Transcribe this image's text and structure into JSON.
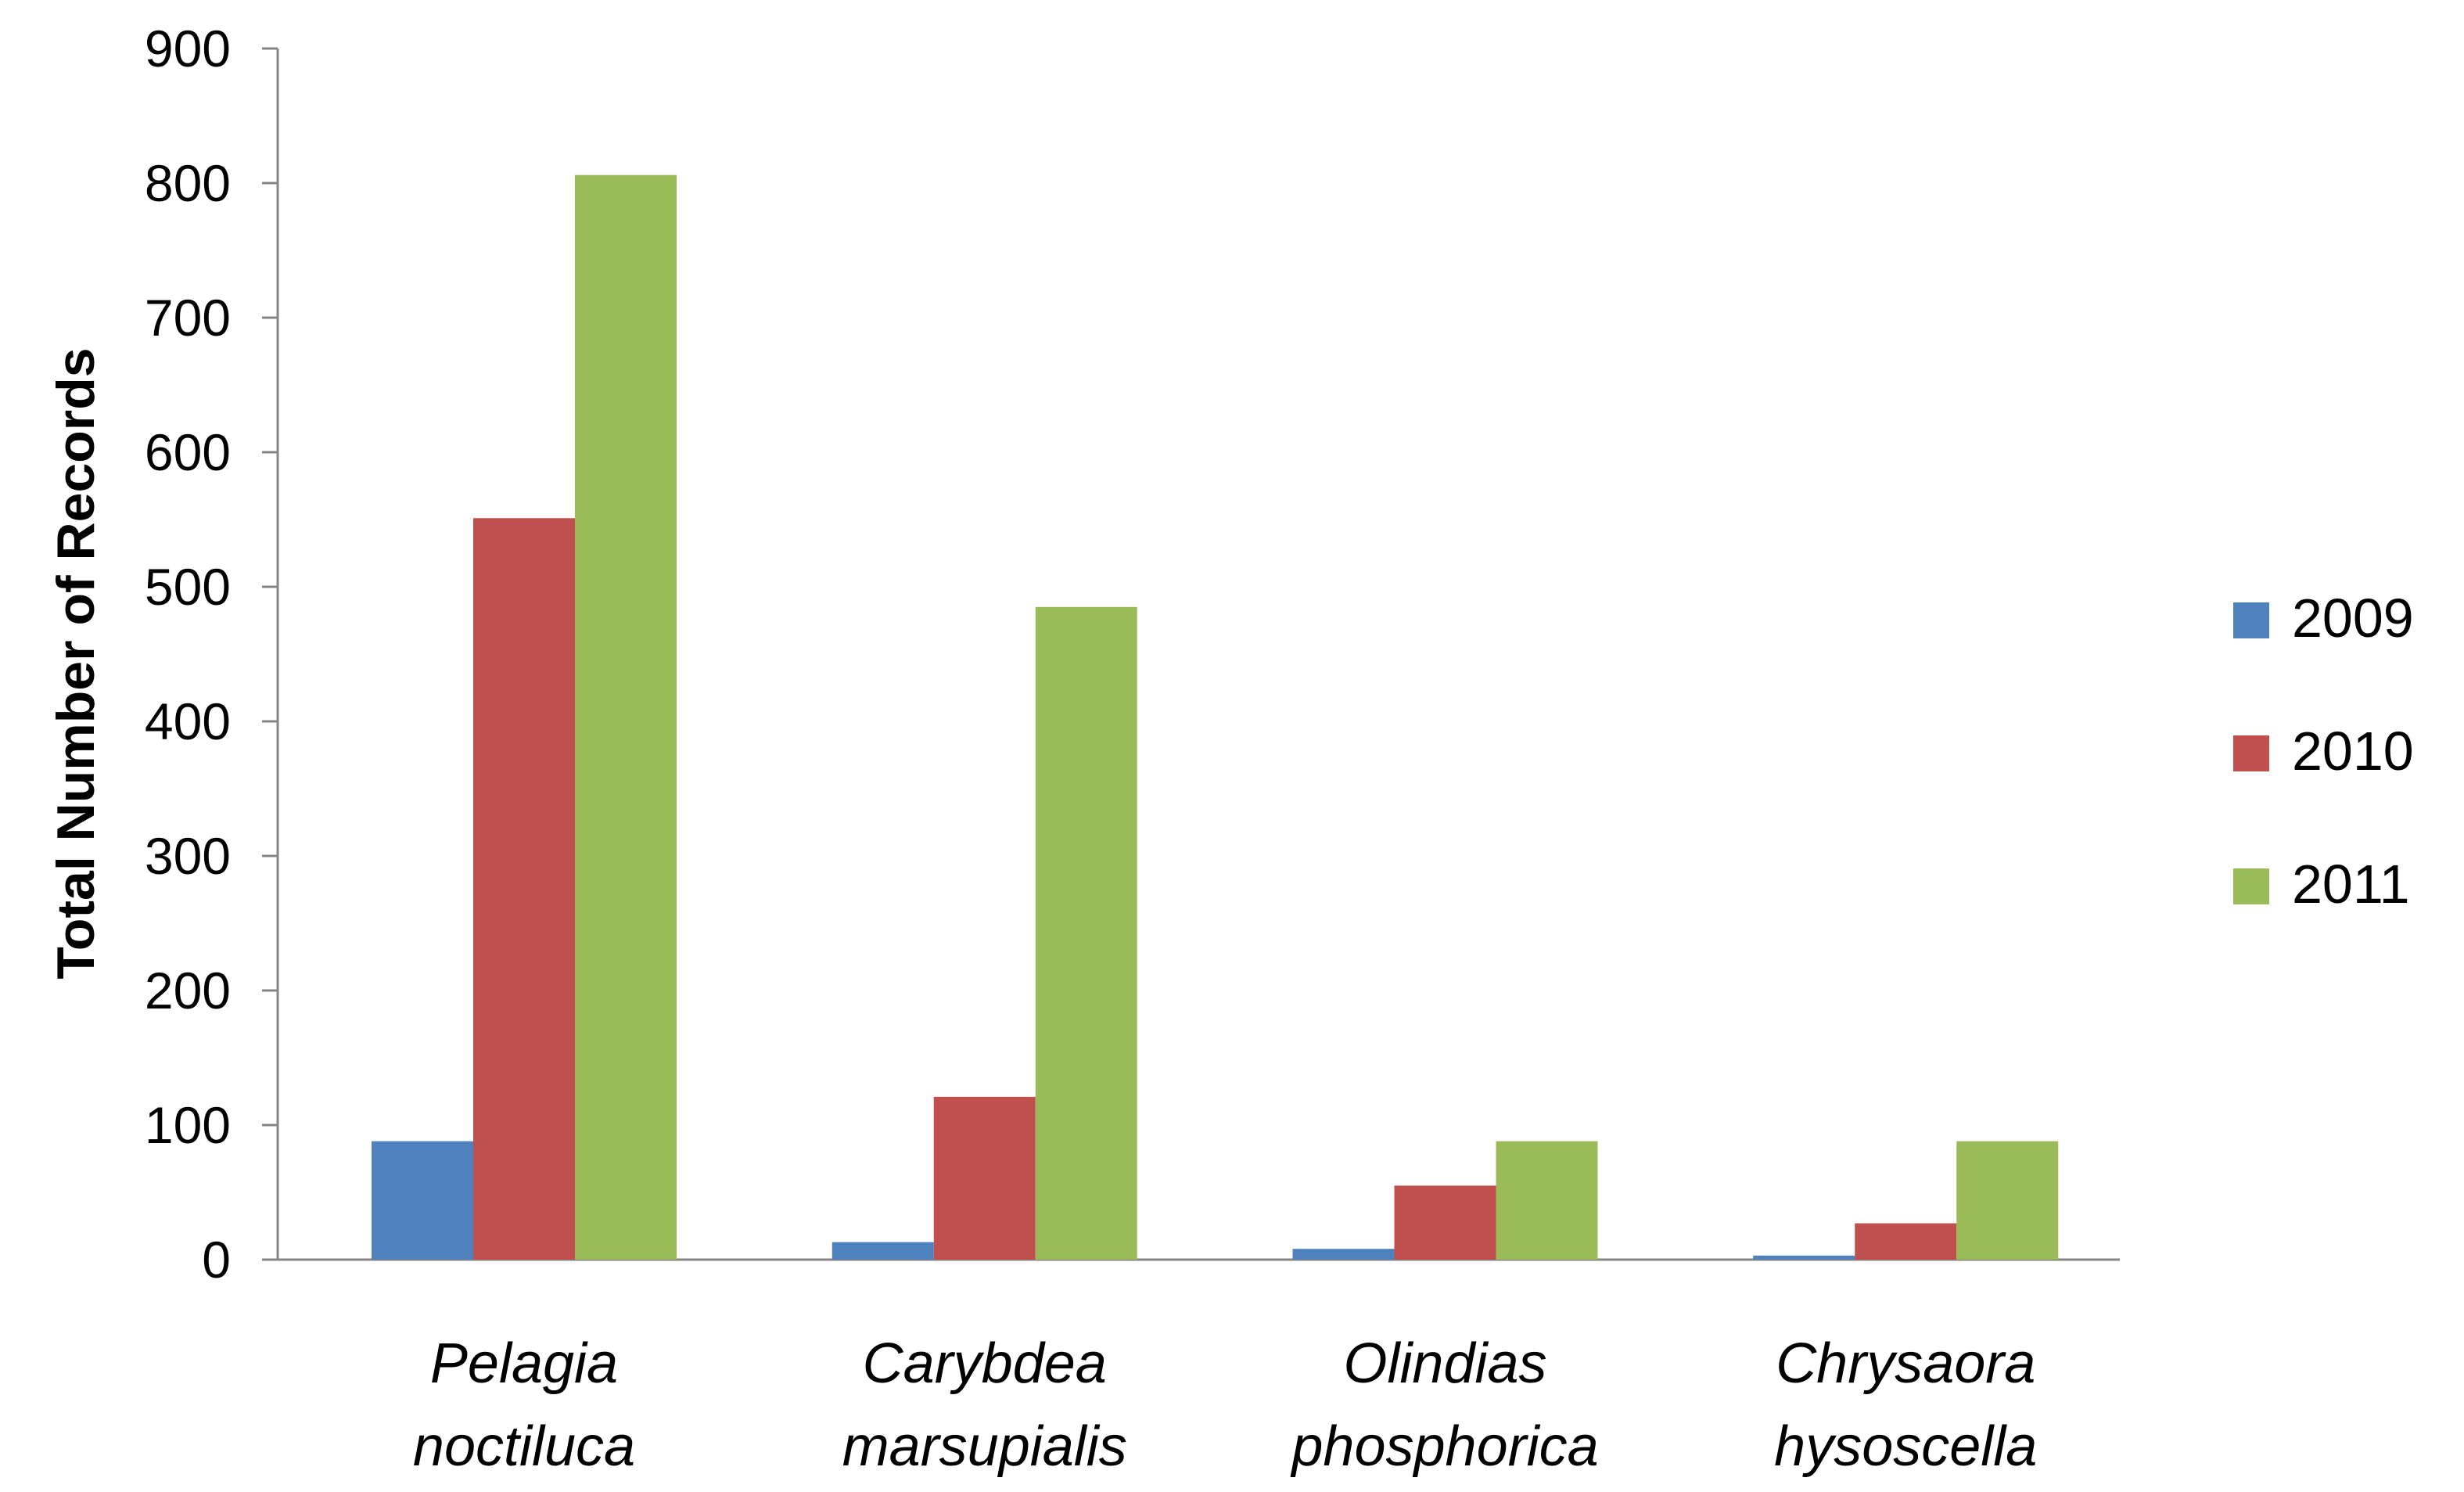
{
  "chart_data": {
    "type": "bar",
    "title": "",
    "xlabel": "",
    "ylabel": "Total Number of Records",
    "ylim": [
      0,
      900
    ],
    "yticks": [
      0,
      100,
      200,
      300,
      400,
      500,
      600,
      700,
      800,
      900
    ],
    "grid": false,
    "legend_position": "right",
    "categories": [
      [
        "Pelagia",
        "noctiluca"
      ],
      [
        "Carybdea",
        "marsupialis"
      ],
      [
        "Olindias",
        "phosphorica"
      ],
      [
        "Chrysaora",
        "hysoscella"
      ]
    ],
    "series": [
      {
        "name": "2009",
        "color": "#4F81BD",
        "values": [
          88,
          13,
          8,
          3
        ]
      },
      {
        "name": "2010",
        "color": "#C0504D",
        "values": [
          551,
          121,
          55,
          27
        ]
      },
      {
        "name": "2011",
        "color": "#9BBB59",
        "values": [
          806,
          485,
          88,
          88
        ]
      }
    ]
  }
}
